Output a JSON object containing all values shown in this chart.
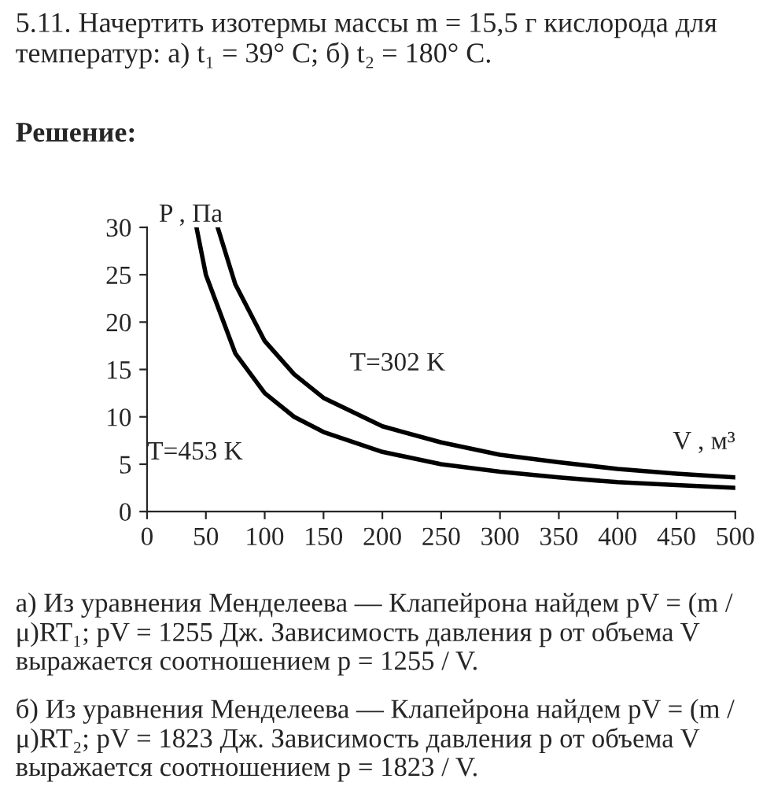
{
  "chart_data": {
    "type": "line",
    "title": "5.11. Начертить изотермы массы m = 15,5 г кислорода для температур: а) t₁ = 39° C; б) t₂ = 180° C.",
    "subtitle": "Решение:",
    "xlabel": "V , м³",
    "ylabel": "P , Па",
    "series": [
      {
        "name": "T=302 K",
        "color": "#000000",
        "x": [
          60,
          75,
          100,
          125,
          150,
          200,
          250,
          300,
          350,
          400,
          450,
          500
        ],
        "values": [
          30,
          24,
          18,
          14.5,
          12,
          9,
          7.3,
          6,
          5.2,
          4.5,
          4,
          3.6
        ]
      },
      {
        "name": "T=453 K",
        "color": "#000000",
        "x": [
          42,
          50,
          75,
          100,
          125,
          150,
          200,
          250,
          300,
          350,
          400,
          450,
          500
        ],
        "values": [
          30,
          25,
          16.7,
          12.5,
          10,
          8.4,
          6.3,
          5,
          4.2,
          3.6,
          3.1,
          2.8,
          2.5
        ]
      }
    ],
    "xlim": [
      0,
      500
    ],
    "ylim": [
      0,
      30
    ],
    "xticks": [
      0,
      50,
      100,
      150,
      200,
      250,
      300,
      350,
      400,
      450,
      500
    ],
    "yticks": [
      0,
      5,
      10,
      15,
      20,
      25,
      30
    ],
    "grid": false,
    "legend": false,
    "marker": "none",
    "line_style": "solid",
    "annotations": [
      "а) Из уравнения Менделеева — Клапейрона найдем pV = (m / μ)RT₁; pV = 1255 Дж. Зависимость давления p от объема V выражается соотношением p = 1255 / V.",
      "б) Из уравнения Менделеева — Клапейрона найдем pV = (m / μ)RT₂; pV = 1823 Дж. Зависимость давления p от объема V выражается соотношением p = 1823 / V."
    ]
  }
}
